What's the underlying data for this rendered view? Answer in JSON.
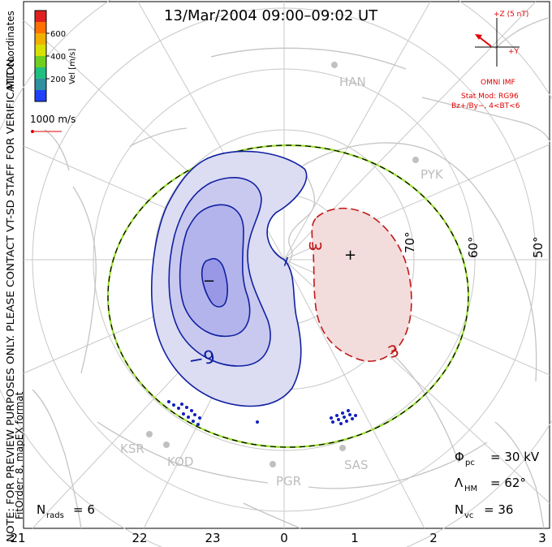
{
  "title": "13/Mar/2004 09:00–09:02 UT",
  "color_bar": {
    "label": "Vel [m/s]",
    "ticks": [
      "600",
      "400",
      "200"
    ],
    "colors": [
      "#e02020",
      "#ff7000",
      "#f0b000",
      "#d8e000",
      "#70d020",
      "#20c080",
      "#3090a0",
      "#2040ff"
    ]
  },
  "coordinates_label": "MLT coordinates",
  "vector_scale_label": "1000 m/s",
  "preview_note": "NOTE: FOR PREVIEW PURPOSES ONLY. PLEASE CONTACT VT-SD STAFF FOR VERIFICATION.",
  "fit_info": "FitOrder: 8, mapEX format",
  "imf": {
    "z_label": "+Z (5 nT)",
    "y_label": "+Y",
    "source": "OMNI IMF",
    "stat_mod": "Stat Mod: RG96",
    "condition": "Bz+/By−, 4<BT<6"
  },
  "stations": [
    "HAN",
    "PYK",
    "KSR",
    "KOD",
    "PGR",
    "SAS"
  ],
  "latitude_labels": [
    "70°",
    "60°",
    "50°"
  ],
  "mlt_labels": [
    "21",
    "22",
    "23",
    "0",
    "1",
    "2",
    "3"
  ],
  "contour_labels": {
    "neg_min": "−",
    "neg_value": "−9",
    "pos_max": "+",
    "pos_value": "3",
    "pos_value_2": "3",
    "neg_tick": "−"
  },
  "stats": {
    "phi_symbol": "Φ",
    "phi_sub": "pc",
    "phi_value": "= 30 kV",
    "lambda_symbol": "Λ",
    "lambda_sub": "HM",
    "lambda_value": "= 62°",
    "nvc_symbol": "N",
    "nvc_sub": "vc",
    "nvc_value": "= 36",
    "nrads_symbol": "N",
    "nrads_sub": "rads",
    "nrads_value": "= 6"
  },
  "colors": {
    "negative_cell_fill": "#dcdcf2",
    "negative_contour": "#1020a0",
    "positive_cell_fill": "#f3dcdc",
    "positive_contour": "#c01818",
    "boundary_green": "#9adf30",
    "grid": "#c8c8c8",
    "coastline": "#c4c4c4"
  }
}
